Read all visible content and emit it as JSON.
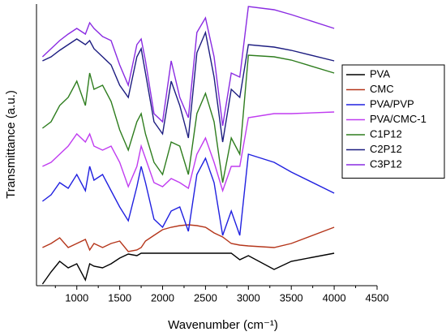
{
  "chart_data": {
    "type": "line",
    "xlabel": "Wavenumber (cm⁻¹)",
    "ylabel": "Transmittance (a.u.)",
    "x": [
      600,
      700,
      800,
      900,
      1000,
      1100,
      1150,
      1200,
      1300,
      1400,
      1500,
      1600,
      1700,
      1750,
      1800,
      1900,
      2000,
      2100,
      2200,
      2300,
      2400,
      2500,
      2600,
      2700,
      2800,
      2900,
      3000,
      3300,
      3500,
      4000
    ],
    "series": [
      {
        "name": "PVA",
        "color": "#000000",
        "values": [
          2,
          17,
          30,
          22,
          27,
          7,
          27,
          24,
          22,
          27,
          34,
          39,
          37,
          40,
          40,
          40,
          40,
          40,
          40,
          40,
          40,
          40,
          40,
          40,
          40,
          32,
          37,
          20,
          30,
          40
        ]
      },
      {
        "name": "CMC",
        "color": "#b5361b",
        "values": [
          47,
          52,
          59,
          47,
          52,
          57,
          44,
          52,
          47,
          52,
          55,
          42,
          44,
          47,
          55,
          62,
          69,
          72,
          74,
          75,
          74,
          72,
          65,
          60,
          52,
          50,
          49,
          47,
          52,
          72
        ]
      },
      {
        "name": "PVA/PVP",
        "color": "#2020e0",
        "values": [
          104,
          112,
          127,
          120,
          137,
          117,
          147,
          130,
          137,
          117,
          97,
          80,
          122,
          147,
          127,
          82,
          72,
          92,
          97,
          67,
          137,
          157,
          127,
          62,
          92,
          62,
          162,
          152,
          140,
          114
        ]
      },
      {
        "name": "PVA/CMC-1",
        "color": "#c03cf0",
        "values": [
          147,
          152,
          162,
          172,
          187,
          177,
          187,
          172,
          167,
          172,
          152,
          122,
          147,
          172,
          157,
          127,
          122,
          132,
          127,
          120,
          162,
          182,
          152,
          117,
          147,
          147,
          207,
          212,
          212,
          214
        ]
      },
      {
        "name": "C1P12",
        "color": "#2e7d1e",
        "values": [
          194,
          202,
          222,
          232,
          252,
          222,
          262,
          242,
          247,
          227,
          192,
          167,
          202,
          212,
          187,
          152,
          137,
          177,
          172,
          137,
          212,
          237,
          202,
          127,
          182,
          162,
          284,
          282,
          278,
          262
        ]
      },
      {
        "name": "C2P12",
        "color": "#1c1c80",
        "values": [
          277,
          282,
          290,
          297,
          304,
          297,
          302,
          292,
          282,
          272,
          247,
          232,
          282,
          292,
          262,
          202,
          187,
          252,
          222,
          182,
          287,
          312,
          257,
          177,
          242,
          232,
          297,
          294,
          290,
          277
        ]
      },
      {
        "name": "C3P12",
        "color": "#8a2be2",
        "values": [
          282,
          292,
          302,
          310,
          317,
          310,
          324,
          317,
          307,
          302,
          272,
          247,
          297,
          304,
          277,
          212,
          202,
          277,
          232,
          207,
          312,
          330,
          282,
          197,
          262,
          257,
          344,
          340,
          334,
          317
        ]
      }
    ],
    "xlim": [
      530,
      4500
    ],
    "xticks": [
      1000,
      1500,
      2000,
      2500,
      3000,
      3500,
      4000,
      4500
    ],
    "ylim": [
      0,
      347
    ],
    "legend": "right"
  }
}
